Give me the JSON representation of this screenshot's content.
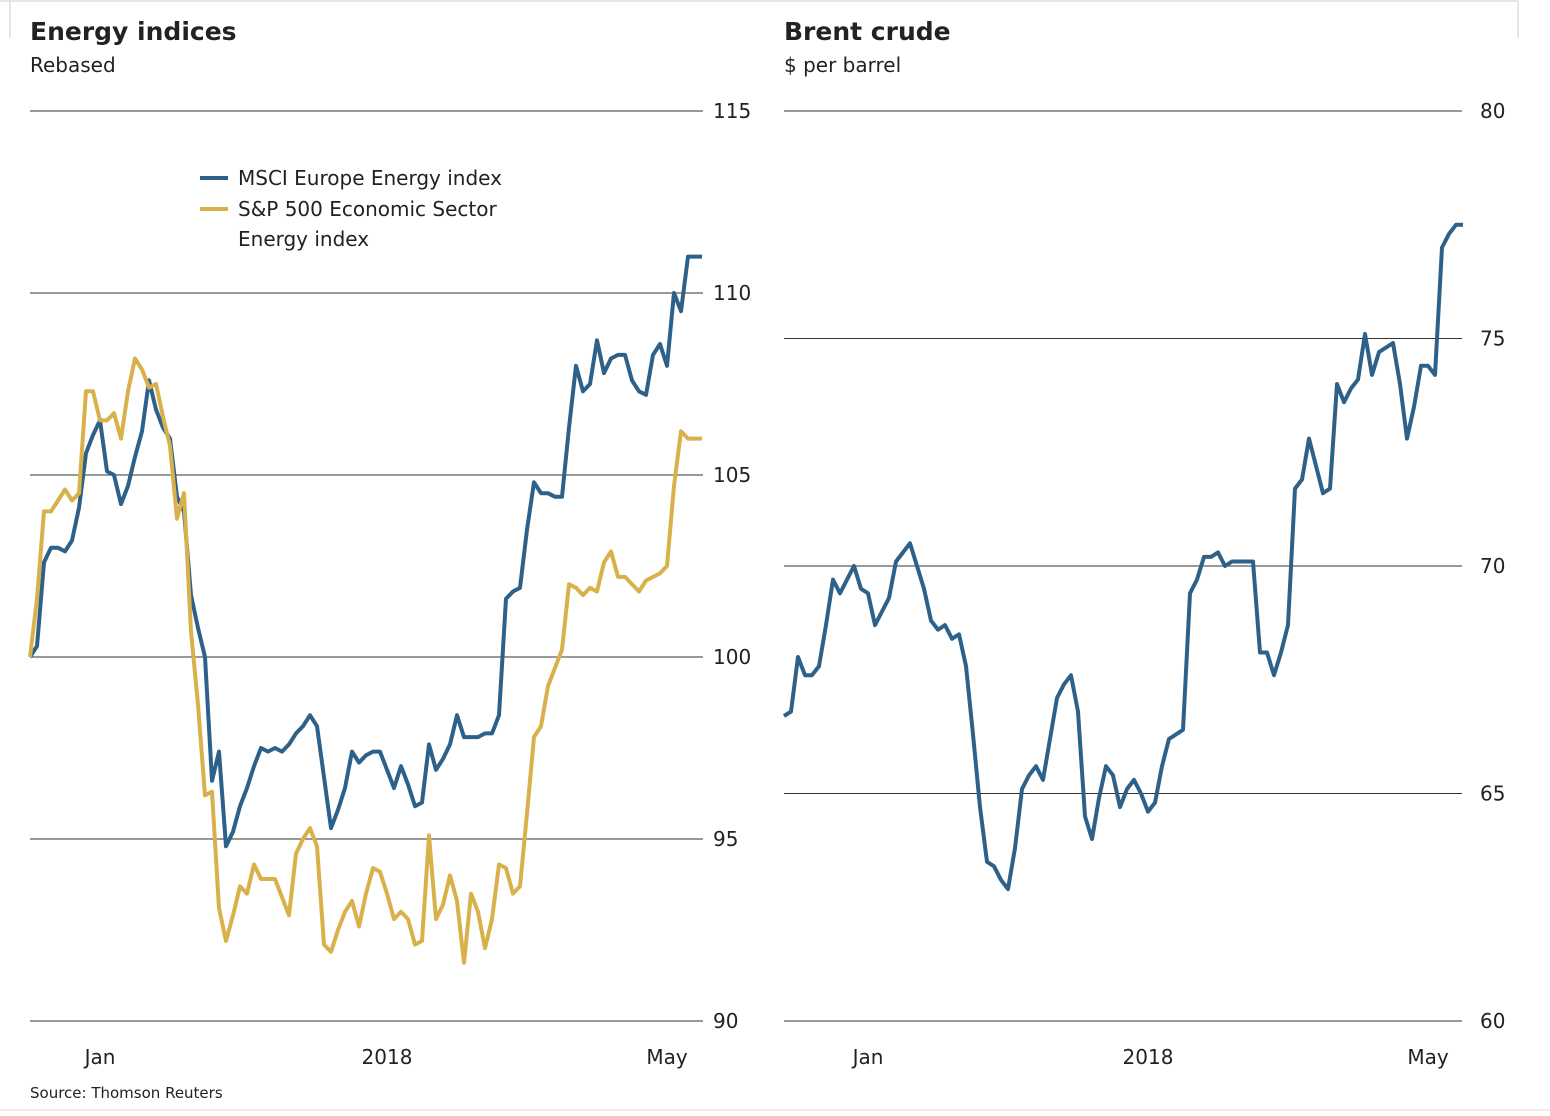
{
  "chart_data": [
    {
      "type": "line",
      "title": "Energy indices",
      "subtitle": "Rebased",
      "categories": [
        null,
        null,
        null,
        null,
        null,
        null,
        null,
        null,
        null,
        null,
        "Jan",
        null,
        null,
        null,
        null,
        null,
        null,
        null,
        null,
        null,
        null,
        null,
        null,
        null,
        null,
        null,
        null,
        null,
        null,
        null,
        null,
        null,
        null,
        null,
        null,
        null,
        null,
        null,
        null,
        null,
        null,
        null,
        null,
        null,
        null,
        null,
        null,
        null,
        null,
        null,
        null,
        "2018",
        null,
        null,
        null,
        null,
        null,
        null,
        null,
        null,
        null,
        null,
        null,
        null,
        null,
        null,
        null,
        null,
        null,
        null,
        null,
        null,
        null,
        null,
        null,
        null,
        null,
        null,
        null,
        null,
        null,
        null,
        null,
        null,
        null,
        null,
        null,
        null,
        null,
        null,
        null,
        "May",
        null,
        null,
        null,
        null,
        null
      ],
      "series": [
        {
          "name": "MSCI Europe Energy index",
          "color": "#2e6189",
          "values": [
            100.0,
            100.3,
            102.6,
            103.0,
            103.0,
            102.9,
            103.2,
            104.1,
            105.6,
            106.1,
            106.5,
            105.1,
            105.0,
            104.2,
            104.7,
            105.5,
            106.2,
            107.6,
            106.8,
            106.3,
            106.0,
            104.4,
            104.0,
            101.7,
            100.8,
            100.0,
            96.6,
            97.4,
            94.8,
            95.2,
            95.9,
            96.4,
            97.0,
            97.5,
            97.4,
            97.5,
            97.4,
            97.6,
            97.9,
            98.1,
            98.4,
            98.1,
            96.7,
            95.3,
            95.8,
            96.4,
            97.4,
            97.1,
            97.3,
            97.4,
            97.4,
            96.9,
            96.4,
            97.0,
            96.5,
            95.9,
            96.0,
            97.6,
            96.9,
            97.2,
            97.6,
            98.4,
            97.8,
            97.8,
            97.8,
            97.9,
            97.9,
            98.4,
            101.6,
            101.8,
            101.9,
            103.5,
            104.8,
            104.5,
            104.5,
            104.4,
            104.4,
            106.3,
            108.0,
            107.3,
            107.5,
            108.7,
            107.8,
            108.2,
            108.3,
            108.3,
            107.6,
            107.3,
            107.2,
            108.3,
            108.6,
            108.0,
            110.0,
            109.5,
            111.0,
            111.0,
            111.0
          ]
        },
        {
          "name": "S&P 500 Economic Sector Energy index",
          "color": "#d9b14b",
          "values": [
            100.0,
            101.6,
            104.0,
            104.0,
            104.3,
            104.6,
            104.3,
            104.5,
            107.3,
            107.3,
            106.5,
            106.5,
            106.7,
            106.0,
            107.3,
            108.2,
            107.9,
            107.4,
            107.5,
            106.6,
            105.8,
            103.8,
            104.5,
            100.7,
            98.7,
            96.2,
            96.3,
            93.1,
            92.2,
            92.9,
            93.7,
            93.5,
            94.3,
            93.9,
            93.9,
            93.9,
            93.4,
            92.9,
            94.6,
            95.0,
            95.3,
            94.8,
            92.1,
            91.9,
            92.5,
            93.0,
            93.3,
            92.6,
            93.5,
            94.2,
            94.1,
            93.5,
            92.8,
            93.0,
            92.8,
            92.1,
            92.2,
            95.1,
            92.8,
            93.2,
            94.0,
            93.3,
            91.6,
            93.5,
            93.0,
            92.0,
            92.8,
            94.3,
            94.2,
            93.5,
            93.7,
            95.7,
            97.8,
            98.1,
            99.2,
            99.7,
            100.2,
            102.0,
            101.9,
            101.7,
            101.9,
            101.8,
            102.6,
            102.9,
            102.2,
            102.2,
            102.0,
            101.8,
            102.1,
            102.2,
            102.3,
            102.5,
            104.7,
            106.2,
            106.0,
            106.0,
            106.0
          ]
        }
      ],
      "ylim": [
        90,
        115
      ],
      "yticks": [
        90,
        95,
        100,
        105,
        110,
        115
      ],
      "grid": true,
      "legend": "top-left"
    },
    {
      "type": "line",
      "title": "Brent crude",
      "subtitle": "$ per barrel",
      "categories": [
        null,
        null,
        null,
        null,
        null,
        null,
        null,
        null,
        null,
        null,
        null,
        null,
        "Jan",
        null,
        null,
        null,
        null,
        null,
        null,
        null,
        null,
        null,
        null,
        null,
        null,
        null,
        null,
        null,
        null,
        null,
        null,
        null,
        null,
        null,
        null,
        null,
        null,
        null,
        null,
        null,
        null,
        null,
        null,
        null,
        null,
        null,
        null,
        null,
        null,
        null,
        null,
        null,
        "2018",
        null,
        null,
        null,
        null,
        null,
        null,
        null,
        null,
        null,
        null,
        null,
        null,
        null,
        null,
        null,
        null,
        null,
        null,
        null,
        null,
        null,
        null,
        null,
        null,
        null,
        null,
        null,
        null,
        null,
        null,
        null,
        null,
        null,
        null,
        null,
        null,
        null,
        null,
        null,
        "May",
        null,
        null,
        null,
        null,
        null
      ],
      "series": [
        {
          "name": null,
          "color": "#2e6189",
          "values": [
            66.7,
            66.8,
            68.0,
            67.6,
            67.6,
            67.8,
            68.7,
            69.7,
            69.4,
            69.7,
            70.0,
            69.5,
            69.4,
            68.7,
            69.0,
            69.3,
            70.1,
            70.3,
            70.5,
            70.0,
            69.5,
            68.8,
            68.6,
            68.7,
            68.4,
            68.5,
            67.8,
            66.3,
            64.7,
            63.5,
            63.4,
            63.1,
            62.9,
            63.8,
            65.1,
            65.4,
            65.6,
            65.3,
            66.2,
            67.1,
            67.4,
            67.6,
            66.8,
            64.5,
            64.0,
            64.9,
            65.6,
            65.4,
            64.7,
            65.1,
            65.3,
            65.0,
            64.6,
            64.8,
            65.6,
            66.2,
            66.3,
            66.4,
            69.4,
            69.7,
            70.2,
            70.2,
            70.3,
            70.0,
            70.1,
            70.1,
            70.1,
            70.1,
            68.1,
            68.1,
            67.6,
            68.1,
            68.7,
            71.7,
            71.9,
            72.8,
            72.2,
            71.6,
            71.7,
            74.0,
            73.6,
            73.9,
            74.1,
            75.1,
            74.2,
            74.7,
            74.8,
            74.9,
            74.0,
            72.8,
            73.5,
            74.4,
            74.4,
            74.2,
            77.0,
            77.3,
            77.5,
            77.5
          ]
        }
      ],
      "ylim": [
        60,
        80
      ],
      "yticks": [
        60,
        65,
        70,
        75,
        80
      ],
      "grid": true
    }
  ],
  "source": "Source: Thomson Reuters"
}
